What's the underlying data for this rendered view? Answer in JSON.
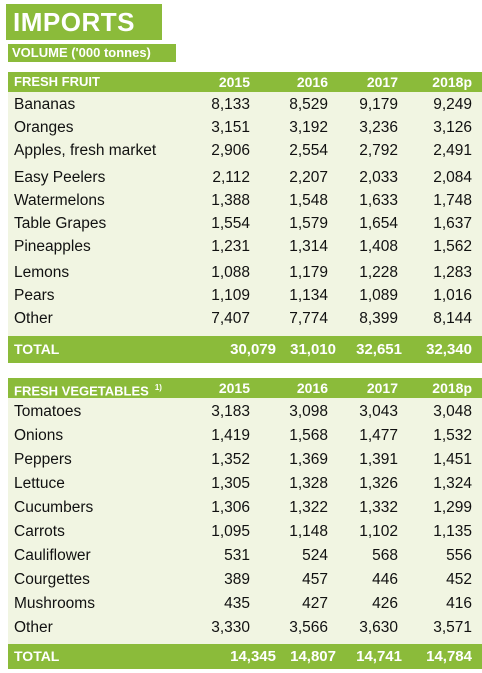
{
  "title": "IMPORTS",
  "subtitle": "VOLUME ('000 tonnes)",
  "fruit": {
    "header": "FRESH FRUIT",
    "years": [
      "2015",
      "2016",
      "2017",
      "2018p"
    ],
    "rows": [
      {
        "name": "Bananas",
        "values": [
          "8,133",
          "8,529",
          "9,179",
          "9,249"
        ]
      },
      {
        "name": "Oranges",
        "values": [
          "3,151",
          "3,192",
          "3,236",
          "3,126"
        ]
      },
      {
        "name": "Apples, fresh market",
        "values": [
          "2,906",
          "2,554",
          "2,792",
          "2,491"
        ]
      },
      {
        "name": "Easy Peelers",
        "values": [
          "2,112",
          "2,207",
          "2,033",
          "2,084"
        ]
      },
      {
        "name": "Watermelons",
        "values": [
          "1,388",
          "1,548",
          "1,633",
          "1,748"
        ]
      },
      {
        "name": "Table Grapes",
        "values": [
          "1,554",
          "1,579",
          "1,654",
          "1,637"
        ]
      },
      {
        "name": "Pineapples",
        "values": [
          "1,231",
          "1,314",
          "1,408",
          "1,562"
        ]
      },
      {
        "name": "Lemons",
        "values": [
          "1,088",
          "1,179",
          "1,228",
          "1,283"
        ]
      },
      {
        "name": "Pears",
        "values": [
          "1,109",
          "1,134",
          "1,089",
          "1,016"
        ]
      },
      {
        "name": "Other",
        "values": [
          "7,407",
          "7,774",
          "8,399",
          "8,144"
        ]
      }
    ],
    "total": {
      "label": "TOTAL",
      "values": [
        "30,079",
        "31,010",
        "32,651",
        "32,340"
      ]
    }
  },
  "vegetables": {
    "header": "FRESH VEGETABLES",
    "footnote": "1)",
    "years": [
      "2015",
      "2016",
      "2017",
      "2018p"
    ],
    "rows": [
      {
        "name": "Tomatoes",
        "values": [
          "3,183",
          "3,098",
          "3,043",
          "3,048"
        ]
      },
      {
        "name": "Onions",
        "values": [
          "1,419",
          "1,568",
          "1,477",
          "1,532"
        ]
      },
      {
        "name": "Peppers",
        "values": [
          "1,352",
          "1,369",
          "1,391",
          "1,451"
        ]
      },
      {
        "name": "Lettuce",
        "values": [
          "1,305",
          "1,328",
          "1,326",
          "1,324"
        ]
      },
      {
        "name": "Cucumbers",
        "values": [
          "1,306",
          "1,322",
          "1,332",
          "1,299"
        ]
      },
      {
        "name": "Carrots",
        "values": [
          "1,095",
          "1,148",
          "1,102",
          "1,135"
        ]
      },
      {
        "name": "Cauliflower",
        "values": [
          "531",
          "524",
          "568",
          "556"
        ]
      },
      {
        "name": "Courgettes",
        "values": [
          "389",
          "457",
          "446",
          "452"
        ]
      },
      {
        "name": "Mushrooms",
        "values": [
          "435",
          "427",
          "426",
          "416"
        ]
      },
      {
        "name": "Other",
        "values": [
          "3,330",
          "3,566",
          "3,630",
          "3,571"
        ]
      }
    ],
    "total": {
      "label": "TOTAL",
      "values": [
        "14,345",
        "14,807",
        "14,741",
        "14,784"
      ]
    }
  }
}
